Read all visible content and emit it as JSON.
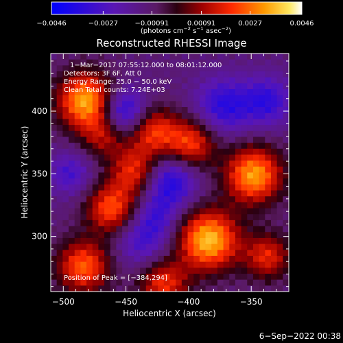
{
  "chart_data": {
    "type": "heatmap",
    "title": "Reconstructed RHESSI Image",
    "xlabel": "Heliocentric X (arcsec)",
    "ylabel": "Heliocentric Y (arcsec)",
    "xlim": [
      -510,
      -320
    ],
    "ylim": [
      256,
      446
    ],
    "x_ticks": [
      -500,
      -450,
      -400,
      -350
    ],
    "y_ticks": [
      300,
      350,
      400
    ],
    "colorbar": {
      "label_main": "(photons cm",
      "label_exp1": "−2",
      "label_mid": " s",
      "label_exp2": "−1",
      "label_tail": " asec",
      "label_exp3": "−2",
      "label_close": ")",
      "min": -0.0046,
      "max": 0.0046,
      "ticks": [
        -0.0046,
        -0.0027,
        -0.00091,
        0.00091,
        0.0027,
        0.0046
      ],
      "tick_labels": [
        "−0.0046",
        "−0.0027",
        "−0.00091",
        "0.00091",
        "0.0027",
        "0.0046"
      ]
    },
    "annotations": {
      "time_range": "1−Mar−2017 07:55:12.000 to 08:01:12.000",
      "detectors": "Detectors: 3F 6F, Att 0",
      "energy": "Energy Range: 25.0 − 50.0 keV",
      "clean": "Clean    Total counts: 7.24E+03",
      "peak": "Position of Peak = [−384,294]"
    },
    "sources": [
      {
        "x": -482,
        "y": 408,
        "amp": 0.0046,
        "sigma": 16
      },
      {
        "x": -468,
        "y": 380,
        "amp": 0.002,
        "sigma": 12
      },
      {
        "x": -428,
        "y": 384,
        "amp": 0.003,
        "sigma": 14
      },
      {
        "x": -398,
        "y": 374,
        "amp": 0.0032,
        "sigma": 14
      },
      {
        "x": -443,
        "y": 352,
        "amp": 0.003,
        "sigma": 14
      },
      {
        "x": -462,
        "y": 322,
        "amp": 0.0034,
        "sigma": 14
      },
      {
        "x": -348,
        "y": 349,
        "amp": 0.0044,
        "sigma": 16
      },
      {
        "x": -384,
        "y": 297,
        "amp": 0.0048,
        "sigma": 17
      },
      {
        "x": -484,
        "y": 276,
        "amp": 0.0036,
        "sigma": 15
      },
      {
        "x": -420,
        "y": 262,
        "amp": 0.003,
        "sigma": 14
      },
      {
        "x": -337,
        "y": 284,
        "amp": 0.0028,
        "sigma": 13
      }
    ],
    "negatives": [
      {
        "x": -452,
        "y": 400,
        "amp": -0.003,
        "sigma": 13
      },
      {
        "x": -372,
        "y": 404,
        "amp": -0.0024,
        "sigma": 16
      },
      {
        "x": -337,
        "y": 408,
        "amp": -0.0022,
        "sigma": 14
      },
      {
        "x": -415,
        "y": 344,
        "amp": -0.0028,
        "sigma": 15
      },
      {
        "x": -495,
        "y": 350,
        "amp": -0.0018,
        "sigma": 12
      },
      {
        "x": -437,
        "y": 296,
        "amp": -0.0018,
        "sigma": 15
      },
      {
        "x": -425,
        "y": 316,
        "amp": -0.0014,
        "sigma": 12
      }
    ]
  },
  "timestamp": "6−Sep−2022 00:38"
}
